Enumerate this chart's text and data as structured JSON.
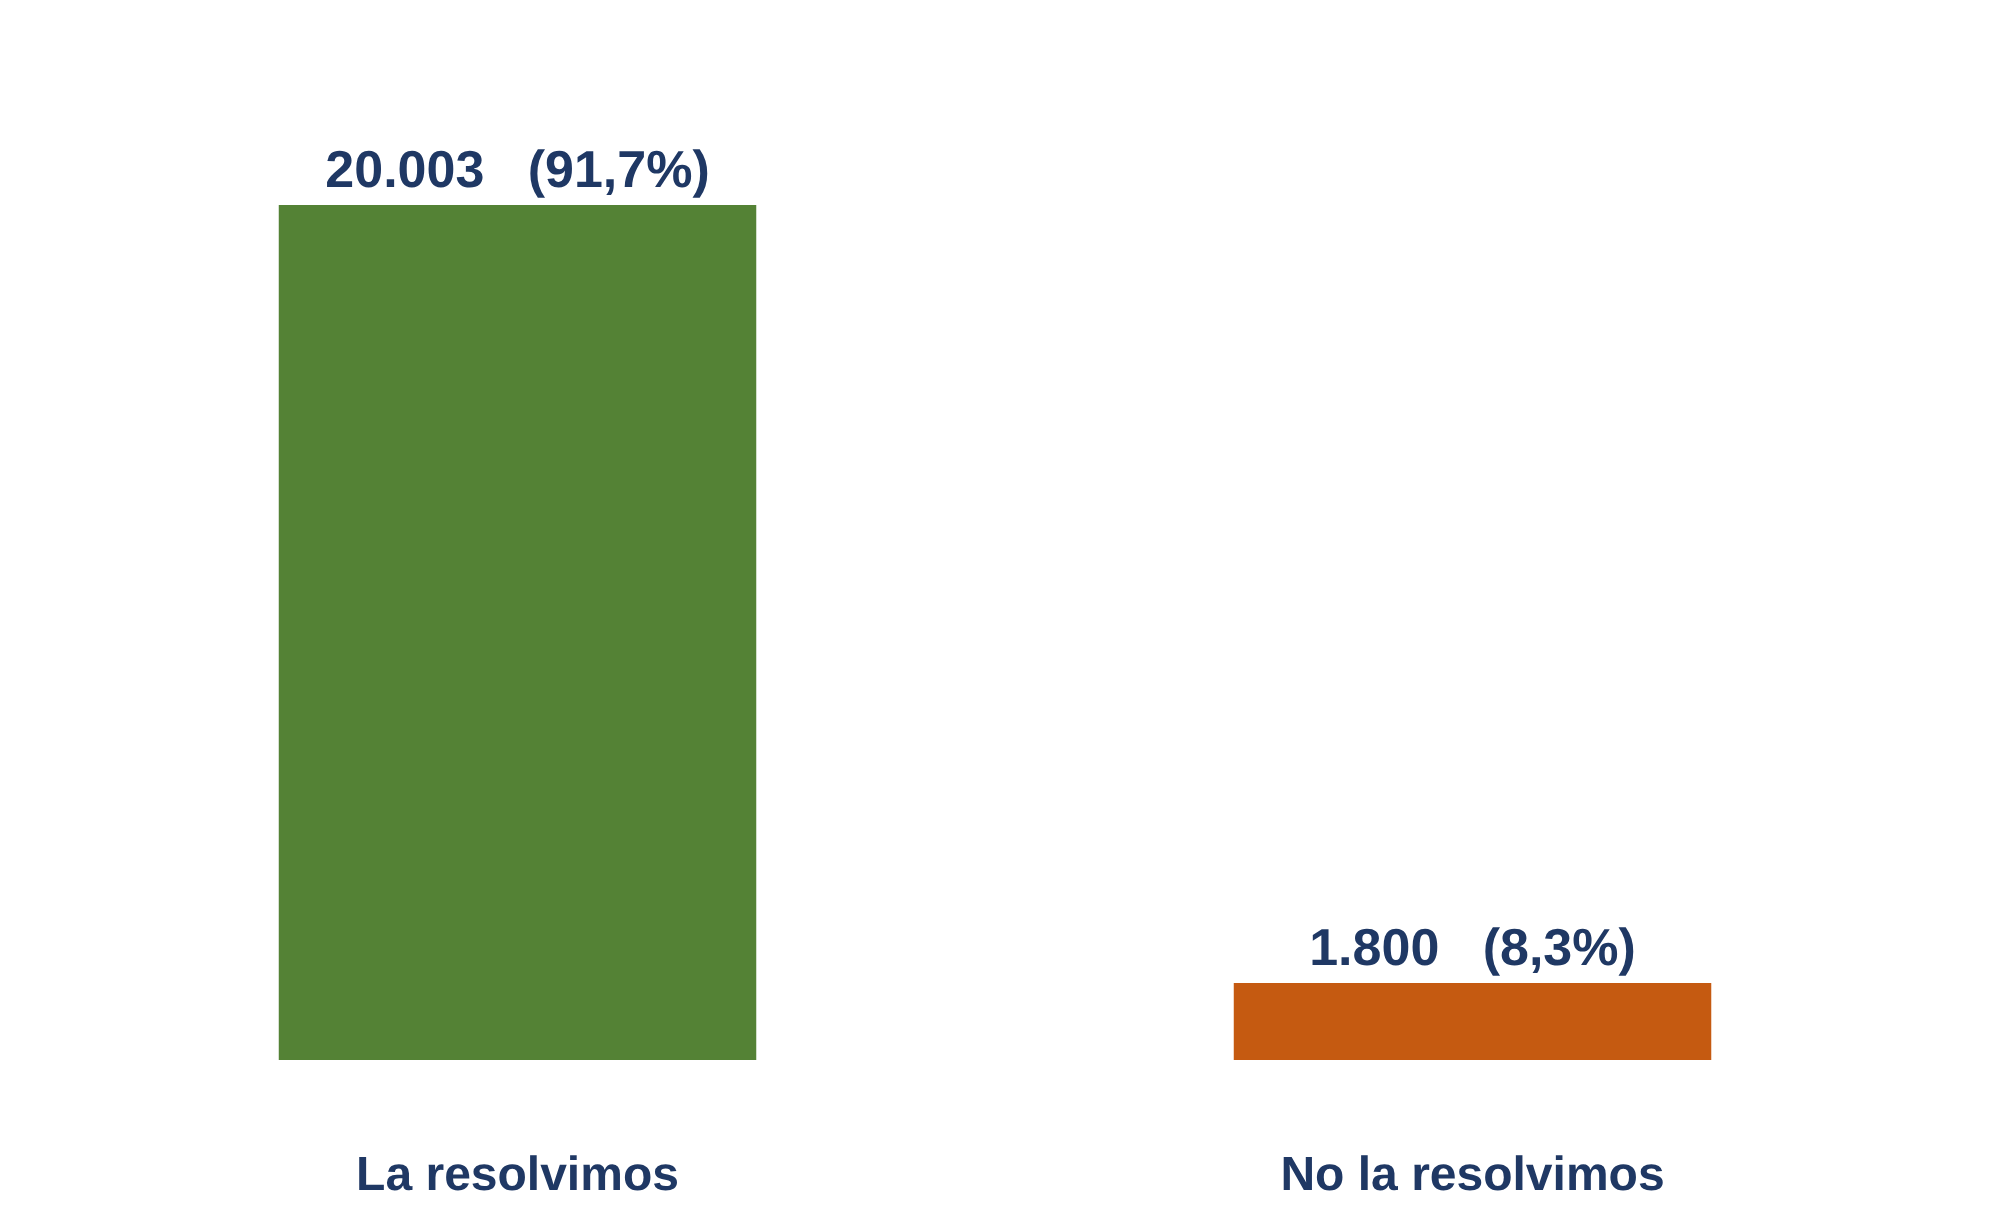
{
  "chart_data": {
    "type": "bar",
    "categories": [
      "La resolvimos",
      "No la resolvimos"
    ],
    "values": [
      20003,
      1800
    ],
    "colors": [
      "#548235",
      "#c55a11"
    ],
    "value_labels": [
      "20.003   (91,7%)",
      "1.800   (8,3%)"
    ],
    "legend": false,
    "tick_labels": "x"
  }
}
